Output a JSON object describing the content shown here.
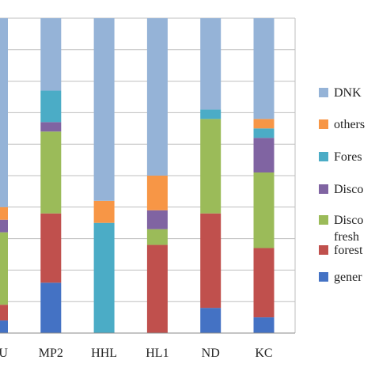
{
  "chart_data": {
    "type": "bar",
    "stacked": true,
    "percent": true,
    "categories": [
      "MU",
      "MP2",
      "HHL",
      "HL1",
      "ND",
      "KC"
    ],
    "series": [
      {
        "name": "gener",
        "color": "#4472C4",
        "values": [
          4,
          16,
          0,
          0,
          8,
          5
        ]
      },
      {
        "name": "forest",
        "color": "#C0504D",
        "values": [
          5,
          22,
          0,
          28,
          30,
          22
        ]
      },
      {
        "name": "Disco fresh",
        "color": "#9BBB59",
        "values": [
          23,
          26,
          0,
          5,
          30,
          24
        ]
      },
      {
        "name": "Disco",
        "color": "#8064A2",
        "values": [
          4,
          3,
          0,
          6,
          0,
          11
        ]
      },
      {
        "name": "Fores",
        "color": "#4BACC6",
        "values": [
          0,
          10,
          35,
          0,
          3,
          3
        ]
      },
      {
        "name": "others",
        "color": "#F79646",
        "values": [
          4,
          0,
          7,
          11,
          0,
          3
        ]
      },
      {
        "name": "DNK",
        "color": "#95B3D7",
        "values": [
          60,
          23,
          58,
          50,
          29,
          32
        ]
      }
    ],
    "ylim": [
      0,
      100
    ],
    "grid": true,
    "legend_position": "right",
    "legend": [
      {
        "label": "DNK",
        "color": "#95B3D7"
      },
      {
        "label": "others",
        "color": "#F79646"
      },
      {
        "label": "Fores",
        "color": "#4BACC6"
      },
      {
        "label": "Disco",
        "color": "#8064A2"
      },
      {
        "label": "Disco",
        "label2": "fresh",
        "color": "#9BBB59"
      },
      {
        "label": "forest",
        "color": "#C0504D"
      },
      {
        "label": "gener",
        "color": "#4472C4"
      }
    ]
  }
}
